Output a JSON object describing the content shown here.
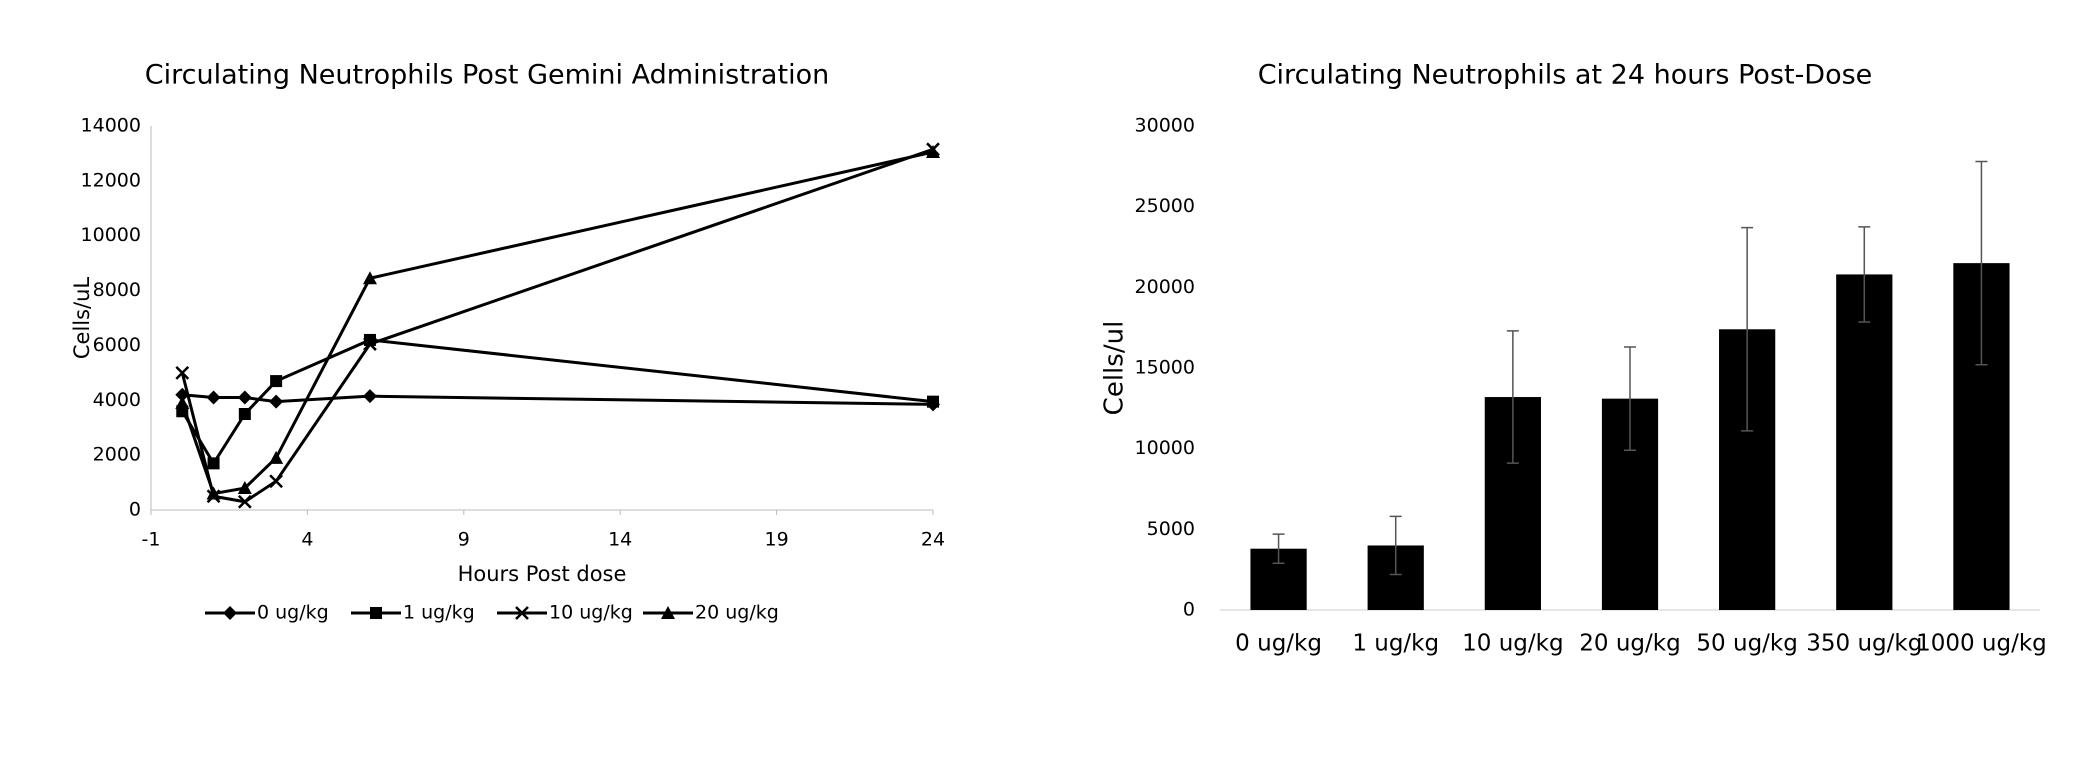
{
  "chart_data": [
    {
      "type": "line",
      "title": "Circulating Neutrophils Post Gemini Administration",
      "x_label": "Hours Post dose",
      "y_label": "Cells/uL",
      "x": [
        0,
        1,
        2,
        3,
        6,
        24
      ],
      "series": [
        {
          "name": "0 ug/kg",
          "color": "#000000",
          "marker": "diamond",
          "values": [
            4200,
            4100,
            4100,
            3950,
            4150,
            3850
          ]
        },
        {
          "name": "1 ug/kg",
          "color": "#000000",
          "marker": "square",
          "values": [
            3600,
            1700,
            3500,
            4700,
            6200,
            3950
          ]
        },
        {
          "name": "10 ug/kg",
          "color": "#000000",
          "marker": "x",
          "values": [
            5000,
            500,
            300,
            1050,
            6050,
            13150
          ]
        },
        {
          "name": "20 ug/kg",
          "color": "#000000",
          "marker": "triangle",
          "values": [
            3900,
            600,
            800,
            1900,
            8450,
            13050
          ]
        }
      ],
      "xlim": [
        -1,
        24
      ],
      "xticks": [
        -1,
        4,
        9,
        14,
        19,
        24
      ],
      "ylim": [
        0,
        14000
      ],
      "yticks": [
        0,
        2000,
        4000,
        6000,
        8000,
        10000,
        12000,
        14000
      ],
      "legend": "bottom",
      "grid": false
    },
    {
      "type": "bar",
      "title": "Circulating Neutrophils at 24 hours Post-Dose",
      "y_label": "Cells/ul",
      "categories": [
        "0 ug/kg",
        "1 ug/kg",
        "10 ug/kg",
        "20 ug/kg",
        "50 ug/kg",
        "350 ug/kg",
        "1000 ug/kg"
      ],
      "values": [
        3800,
        4000,
        13200,
        13100,
        17400,
        20800,
        21500
      ],
      "errors": [
        900,
        1800,
        4100,
        3200,
        6300,
        2950,
        6300
      ],
      "color": "#000000",
      "ylim": [
        0,
        30000
      ],
      "yticks": [
        0,
        5000,
        10000,
        15000,
        20000,
        25000,
        30000
      ],
      "grid": false
    }
  ]
}
